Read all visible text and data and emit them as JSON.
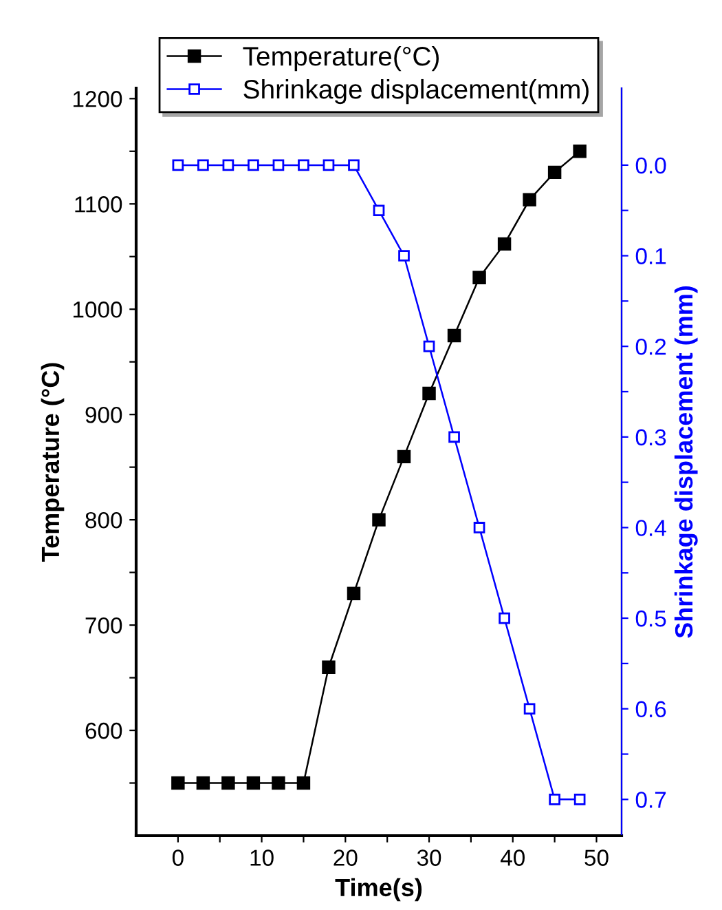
{
  "chart_data": {
    "type": "line",
    "xlabel": "Time(s)",
    "ylabel": "Temperature (°C)",
    "y2label": "Shrinkage displacement (mm)",
    "xlim": [
      -5,
      53
    ],
    "xticks": [
      0,
      {
        "value": 5,
        "label": null
      },
      10,
      {
        "value": 15,
        "label": null
      },
      20,
      {
        "value": 25,
        "label": null
      },
      30,
      {
        "value": 35,
        "label": null
      },
      40,
      {
        "value": 45,
        "label": null
      },
      50
    ],
    "ylim": [
      500,
      1210
    ],
    "yticks": [
      {
        "value": 550,
        "label": null
      },
      600,
      {
        "value": 650,
        "label": null
      },
      700,
      {
        "value": 750,
        "label": null
      },
      800,
      {
        "value": 850,
        "label": null
      },
      900,
      {
        "value": 950,
        "label": null
      },
      1000,
      {
        "value": 1050,
        "label": null
      },
      1100,
      {
        "value": 1150,
        "label": null
      },
      1200
    ],
    "y2lim": [
      0.74,
      -0.085
    ],
    "y2ticks": [
      {
        "value": 0.0,
        "label": "0.0"
      },
      {
        "value": 0.05,
        "label": null
      },
      0.1,
      {
        "value": 0.15,
        "label": null
      },
      0.2,
      {
        "value": 0.25,
        "label": null
      },
      0.3,
      {
        "value": 0.35,
        "label": null
      },
      0.4,
      {
        "value": 0.45,
        "label": null
      },
      0.5,
      {
        "value": 0.55,
        "label": null
      },
      0.6,
      {
        "value": 0.65,
        "label": null
      },
      0.7
    ],
    "legend": "top",
    "grid": false,
    "marker": "square",
    "line_style": "solid",
    "series": [
      {
        "name": "Temperature(°C)",
        "color": "#000000",
        "x": [
          0,
          3,
          6,
          9,
          12,
          15,
          18,
          21,
          24,
          27,
          30,
          33,
          36,
          39,
          42,
          45,
          48
        ],
        "values": [
          550,
          550,
          550,
          550,
          550,
          550,
          660,
          730,
          800,
          860,
          920,
          975,
          1030,
          1062,
          1104,
          1130,
          1150
        ]
      },
      {
        "name": "Shrinkage displacement(mm)",
        "color": "#0000ff",
        "axis": "y2",
        "x": [
          0,
          3,
          6,
          9,
          12,
          15,
          18,
          21,
          24,
          27,
          30,
          33,
          36,
          39,
          42,
          45,
          48
        ],
        "values": [
          0.0,
          0.0,
          0.0,
          0.0,
          0.0,
          0.0,
          0.0,
          0.0,
          0.05,
          0.1,
          0.2,
          0.3,
          0.4,
          0.5,
          0.6,
          0.7,
          0.7
        ]
      }
    ]
  }
}
